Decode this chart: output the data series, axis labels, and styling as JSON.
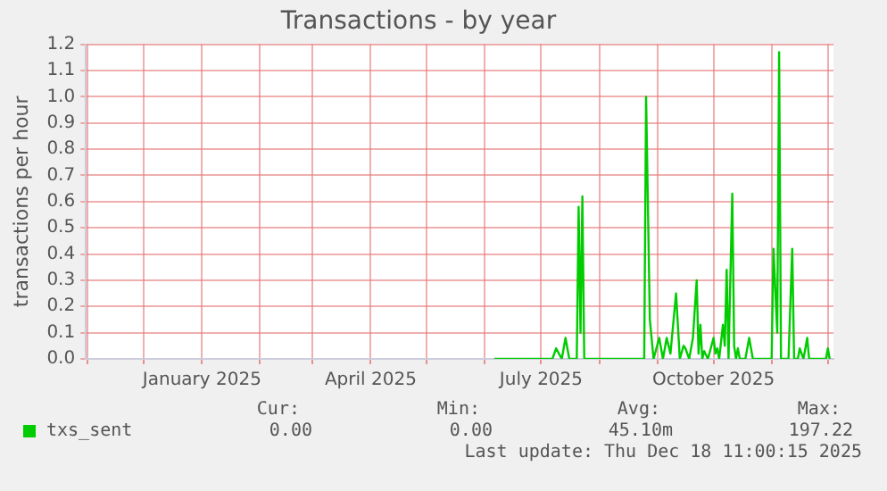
{
  "chart_data": {
    "type": "line",
    "title": "Transactions - by year",
    "ylabel": "transactions per hour",
    "xlim": [
      "2024-10-31",
      "2025-12-04"
    ],
    "xticks": [
      {
        "value": "2024-11-01",
        "label": null
      },
      {
        "value": "2024-12-01",
        "label": null
      },
      {
        "value": "2025-01-01",
        "label": "January 2025"
      },
      {
        "value": "2025-02-01",
        "label": null
      },
      {
        "value": "2025-03-01",
        "label": null
      },
      {
        "value": "2025-04-01",
        "label": "April 2025"
      },
      {
        "value": "2025-05-01",
        "label": null
      },
      {
        "value": "2025-06-01",
        "label": null
      },
      {
        "value": "2025-07-01",
        "label": "July 2025"
      },
      {
        "value": "2025-08-01",
        "label": null
      },
      {
        "value": "2025-09-01",
        "label": null
      },
      {
        "value": "2025-10-01",
        "label": "October 2025"
      },
      {
        "value": "2025-11-01",
        "label": null
      },
      {
        "value": "2025-12-01",
        "label": null
      }
    ],
    "ylim": [
      0,
      1.2
    ],
    "yticks": [
      {
        "value": 0,
        "label": "0.0"
      },
      0.1,
      0.2,
      0.3,
      0.4,
      0.5,
      0.6,
      0.7,
      0.8,
      0.9,
      {
        "value": 1,
        "label": "1.0"
      },
      1.1,
      1.2
    ],
    "grid": true,
    "legend": "bottom",
    "marker": "none",
    "x": [
      "2025-06-06",
      "2025-07-07",
      "2025-07-09",
      "2025-07-12",
      "2025-07-14",
      "2025-07-16",
      "2025-07-20",
      "2025-07-21",
      "2025-07-22",
      "2025-07-23",
      "2025-07-24",
      "2025-08-25",
      "2025-08-26",
      "2025-08-28",
      "2025-08-30",
      "2025-09-02",
      "2025-09-04",
      "2025-09-06",
      "2025-09-08",
      "2025-09-11",
      "2025-09-13",
      "2025-09-15",
      "2025-09-16",
      "2025-09-18",
      "2025-09-20",
      "2025-09-22",
      "2025-09-23",
      "2025-09-24",
      "2025-09-25",
      "2025-09-26",
      "2025-09-28",
      "2025-10-01",
      "2025-10-02",
      "2025-10-03",
      "2025-10-04",
      "2025-10-06",
      "2025-10-07",
      "2025-10-08",
      "2025-10-09",
      "2025-10-11",
      "2025-10-12",
      "2025-10-13",
      "2025-10-14",
      "2025-10-15",
      "2025-10-18",
      "2025-10-20",
      "2025-10-22",
      "2025-11-01",
      "2025-11-02",
      "2025-11-04",
      "2025-11-05",
      "2025-11-06",
      "2025-11-10",
      "2025-11-12",
      "2025-11-13",
      "2025-11-15",
      "2025-11-16",
      "2025-11-18",
      "2025-11-20",
      "2025-11-21",
      "2025-11-30",
      "2025-12-01",
      "2025-12-02"
    ],
    "series": [
      {
        "name": "txs_sent",
        "color": "#00cc00",
        "values": [
          0,
          0,
          0.04,
          0,
          0.08,
          0,
          0,
          0.58,
          0.1,
          0.62,
          0,
          0,
          1.0,
          0.15,
          0,
          0.08,
          0,
          0.08,
          0.02,
          0.25,
          0,
          0.05,
          0.04,
          0,
          0.08,
          0.3,
          0.02,
          0.13,
          0,
          0.03,
          0,
          0.08,
          0.02,
          0.04,
          0,
          0.13,
          0.05,
          0.34,
          0,
          0.63,
          0.05,
          0,
          0.04,
          0,
          0,
          0.08,
          0,
          0,
          0.42,
          0.1,
          1.17,
          0,
          0,
          0.42,
          0,
          0,
          0.04,
          0,
          0.08,
          0,
          0,
          0.04,
          0
        ]
      }
    ],
    "annotations": [
      "Cur:",
      "Min:",
      "Avg:",
      "Max:",
      "0.00",
      "0.00",
      "45.10m",
      "197.22",
      "Last update: Thu Dec 18 11:00:15 2025"
    ]
  }
}
